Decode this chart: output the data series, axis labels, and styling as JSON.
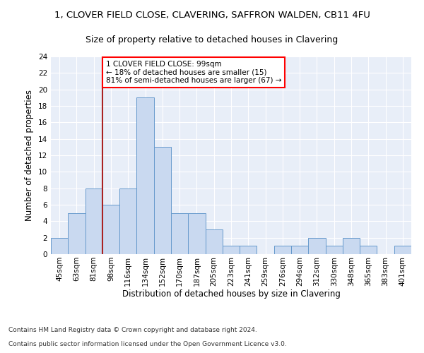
{
  "title": "1, CLOVER FIELD CLOSE, CLAVERING, SAFFRON WALDEN, CB11 4FU",
  "subtitle": "Size of property relative to detached houses in Clavering",
  "xlabel": "Distribution of detached houses by size in Clavering",
  "ylabel": "Number of detached properties",
  "bar_color": "#c9d9f0",
  "bar_edge_color": "#6699cc",
  "categories": [
    "45sqm",
    "63sqm",
    "81sqm",
    "98sqm",
    "116sqm",
    "134sqm",
    "152sqm",
    "170sqm",
    "187sqm",
    "205sqm",
    "223sqm",
    "241sqm",
    "259sqm",
    "276sqm",
    "294sqm",
    "312sqm",
    "330sqm",
    "348sqm",
    "365sqm",
    "383sqm",
    "401sqm"
  ],
  "values": [
    2,
    5,
    8,
    6,
    8,
    19,
    13,
    5,
    5,
    3,
    1,
    1,
    0,
    1,
    1,
    2,
    1,
    2,
    1,
    0,
    1
  ],
  "ylim": [
    0,
    24
  ],
  "yticks": [
    0,
    2,
    4,
    6,
    8,
    10,
    12,
    14,
    16,
    18,
    20,
    22,
    24
  ],
  "red_line_x": 2.5,
  "annotation_text": "1 CLOVER FIELD CLOSE: 99sqm\n← 18% of detached houses are smaller (15)\n81% of semi-detached houses are larger (67) →",
  "annotation_box_color": "white",
  "annotation_box_edge_color": "red",
  "background_color": "#e8eef8",
  "footnote1": "Contains HM Land Registry data © Crown copyright and database right 2024.",
  "footnote2": "Contains public sector information licensed under the Open Government Licence v3.0.",
  "grid_color": "#ffffff",
  "title_fontsize": 9.5,
  "subtitle_fontsize": 9,
  "xlabel_fontsize": 8.5,
  "ylabel_fontsize": 8.5,
  "tick_fontsize": 7.5,
  "annotation_fontsize": 7.5,
  "footnote_fontsize": 6.5
}
